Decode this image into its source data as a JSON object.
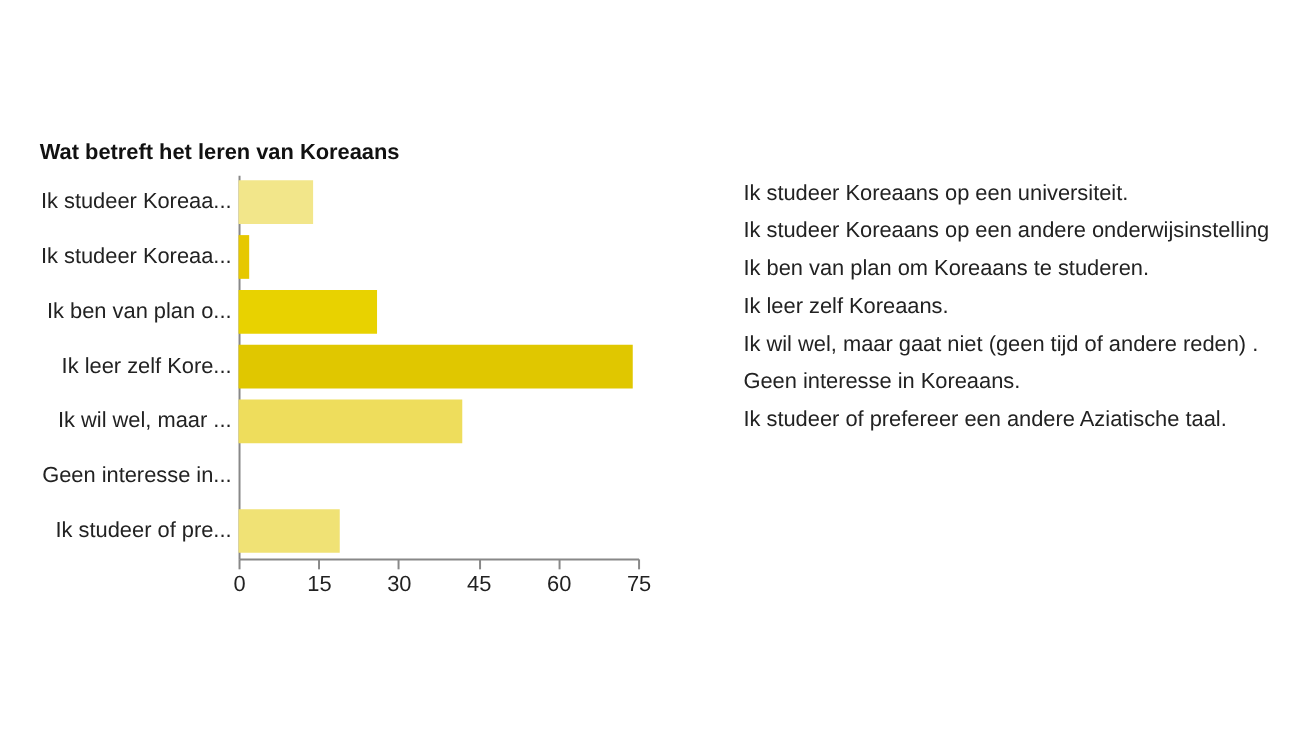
{
  "chart_data": {
    "type": "bar",
    "orientation": "horizontal",
    "title": "Wat betreft het leren van Koreaans",
    "categories": [
      "Ik studeer Koreaa...",
      "Ik studeer Koreaa...",
      "Ik ben van plan o...",
      "Ik leer zelf Kore...",
      "Ik wil wel, maar ...",
      "Geen interesse in...",
      "Ik studeer of pre..."
    ],
    "values": [
      14,
      2,
      26,
      74,
      42,
      0,
      19
    ],
    "colors": [
      "#f2e68a",
      "#e6c800",
      "#e8d200",
      "#e0c700",
      "#eedd5c",
      "#eedd5c",
      "#f0e275"
    ],
    "xlim": [
      0,
      75
    ],
    "xticks": [
      0,
      15,
      30,
      45,
      60,
      75
    ],
    "grid": false,
    "annotations": [
      "Ik studeer Koreaans op een universiteit.",
      "Ik studeer Koreaans op een andere onderwijsinstelling",
      "Ik ben van plan om Koreaans te studeren.",
      "Ik leer zelf Koreaans.",
      "Ik wil wel, maar gaat niet (geen tijd of andere reden) .",
      "Geen interesse in Koreaans.",
      "Ik studeer of prefereer een andere Aziatische taal."
    ]
  }
}
